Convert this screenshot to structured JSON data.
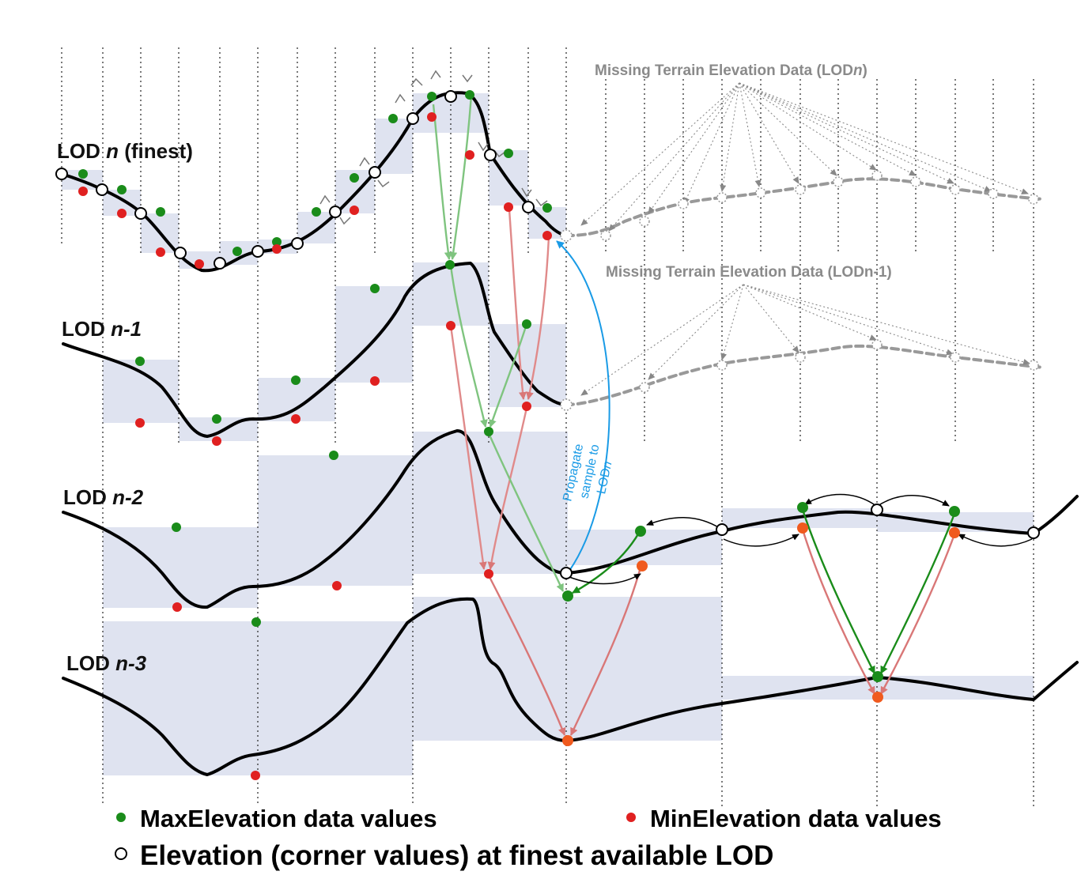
{
  "labels": {
    "lod_n_prefix": "LOD ",
    "lod_n_var": "n",
    "lod_n_suffix": " (finest)",
    "lod_n1_prefix": "LOD ",
    "lod_n1_var": "n-1",
    "lod_n2_prefix": "LOD ",
    "lod_n2_var": "n-2",
    "lod_n3_prefix": "LOD ",
    "lod_n3_var": "n-3"
  },
  "missing": {
    "lodn_prefix": "Missing Terrain Elevation Data (LOD",
    "lodn_var": "n",
    "lodn_suffix": ")",
    "lodn1": "Missing Terrain Elevation Data (LODn-1)"
  },
  "propagate": {
    "line1": "Propagate",
    "line2": "sample to",
    "line3_prefix": "LOD",
    "line3_var": "n"
  },
  "legend": {
    "max": "MaxElevation data values",
    "min": "MinElevation data values",
    "corner": "Elevation (corner values) at finest available LOD"
  },
  "colors": {
    "max": "#1a8c1a",
    "min": "#e02020",
    "min_orange": "#f05a1e",
    "band": "#dfe3f0",
    "propagate": "#1a9be6",
    "green_arrow_light": "#7fc47f",
    "red_arrow_light": "#e08a8a",
    "missing_gray": "#9a9a9a"
  }
}
